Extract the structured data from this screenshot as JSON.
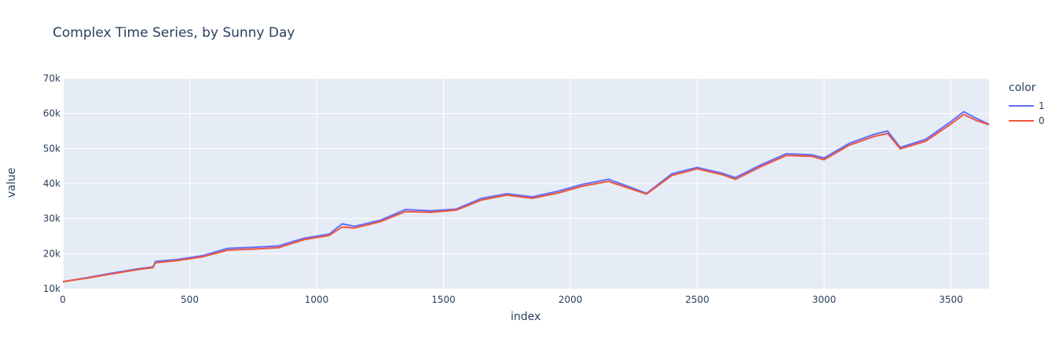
{
  "chart_data": {
    "type": "line",
    "title": "Complex Time Series, by Sunny Day",
    "xlabel": "index",
    "ylabel": "value",
    "xlim": [
      0,
      3650
    ],
    "ylim": [
      10000,
      70000
    ],
    "x_ticks": [
      0,
      500,
      1000,
      1500,
      2000,
      2500,
      3000,
      3500
    ],
    "y_ticks": [
      10000,
      20000,
      30000,
      40000,
      50000,
      60000,
      70000
    ],
    "x_tick_labels": [
      "0",
      "500",
      "1000",
      "1500",
      "2000",
      "2500",
      "3000",
      "3500"
    ],
    "y_tick_labels": [
      "10k",
      "20k",
      "30k",
      "40k",
      "50k",
      "60k",
      "70k"
    ],
    "grid": true,
    "legend": {
      "title": "color",
      "position": "right"
    },
    "series": [
      {
        "name": "1",
        "color": "#636efa",
        "x": [
          0,
          100,
          200,
          300,
          355,
          365,
          450,
          550,
          650,
          750,
          850,
          950,
          1050,
          1100,
          1150,
          1250,
          1350,
          1450,
          1550,
          1650,
          1750,
          1850,
          1950,
          2050,
          2150,
          2250,
          2300,
          2400,
          2500,
          2600,
          2650,
          2750,
          2850,
          2950,
          3000,
          3100,
          3200,
          3250,
          3300,
          3400,
          3500,
          3550,
          3600,
          3650
        ],
        "y": [
          12000,
          13200,
          14500,
          15700,
          16200,
          17800,
          18300,
          19400,
          21500,
          21800,
          22200,
          24400,
          25600,
          28500,
          27800,
          29500,
          32600,
          32200,
          32700,
          35800,
          37100,
          36200,
          37800,
          39800,
          41200,
          38600,
          37200,
          42800,
          44600,
          42900,
          41700,
          45300,
          48500,
          48200,
          47300,
          51500,
          54100,
          55000,
          50300,
          52600,
          57700,
          60500,
          58600,
          56900
        ]
      },
      {
        "name": "0",
        "color": "#ef553b",
        "x": [
          0,
          100,
          200,
          300,
          355,
          365,
          450,
          550,
          650,
          750,
          850,
          950,
          1050,
          1100,
          1150,
          1250,
          1350,
          1450,
          1550,
          1650,
          1750,
          1850,
          1950,
          2050,
          2150,
          2250,
          2300,
          2400,
          2500,
          2600,
          2650,
          2750,
          2850,
          2950,
          3000,
          3100,
          3200,
          3250,
          3300,
          3400,
          3500,
          3550,
          3600,
          3650
        ],
        "y": [
          12000,
          13100,
          14300,
          15500,
          16000,
          17400,
          18000,
          19100,
          21000,
          21300,
          21700,
          24000,
          25200,
          27600,
          27300,
          29100,
          32000,
          31800,
          32400,
          35300,
          36700,
          35800,
          37300,
          39300,
          40600,
          38200,
          37000,
          42300,
          44200,
          42500,
          41200,
          44800,
          48000,
          47800,
          46800,
          51000,
          53500,
          54300,
          49900,
          52100,
          57000,
          59700,
          58000,
          56800
        ]
      }
    ]
  }
}
